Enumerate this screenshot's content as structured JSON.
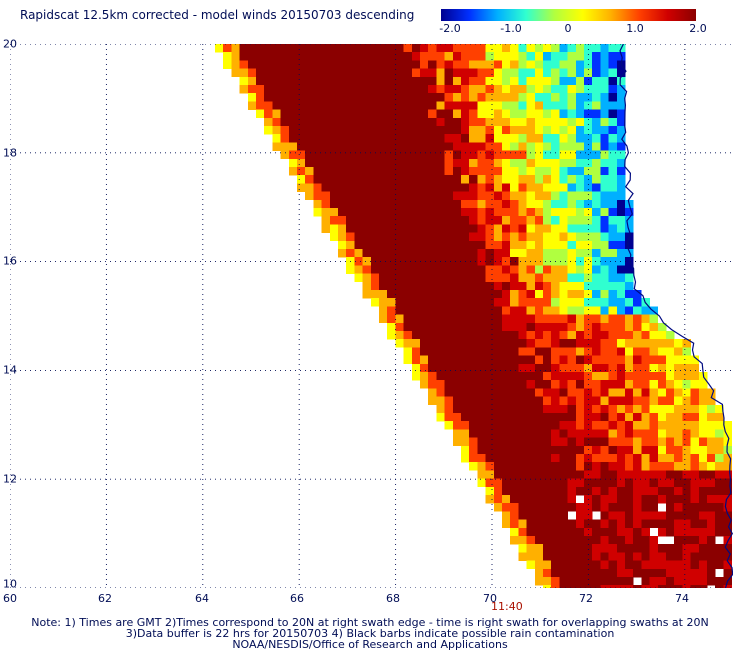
{
  "title": "Rapidscat 12.5km corrected - model winds 20150703 descending",
  "colorbar": {
    "ticks": [
      "-2.0",
      "-1.0",
      "0",
      "1.0",
      "2.0"
    ],
    "colors": [
      "#000090",
      "#0030ff",
      "#00b0ff",
      "#30ffd0",
      "#b0ff40",
      "#ffff00",
      "#ffb000",
      "#ff4000",
      "#d00000",
      "#8b0000"
    ]
  },
  "map": {
    "lon_ticks": [
      "60",
      "62",
      "64",
      "66",
      "68",
      "70",
      "72",
      "74"
    ],
    "lat_ticks": [
      "20",
      "18",
      "16",
      "14",
      "12",
      "10"
    ],
    "lon_range": [
      60,
      75
    ],
    "lat_range": [
      10,
      20
    ],
    "grid": "dotted",
    "coastline_color": "#000a80"
  },
  "pass_time": "11:40",
  "notes": [
    "Note: 1) Times are GMT 2)Times correspond to 20N at right swath edge - time is right swath for overlapping swaths at 20N",
    "3)Data buffer is 22 hrs for 20150703 4) Black barbs indicate possible rain contamination",
    "NOAA/NESDIS/Office of Research and Applications"
  ]
}
